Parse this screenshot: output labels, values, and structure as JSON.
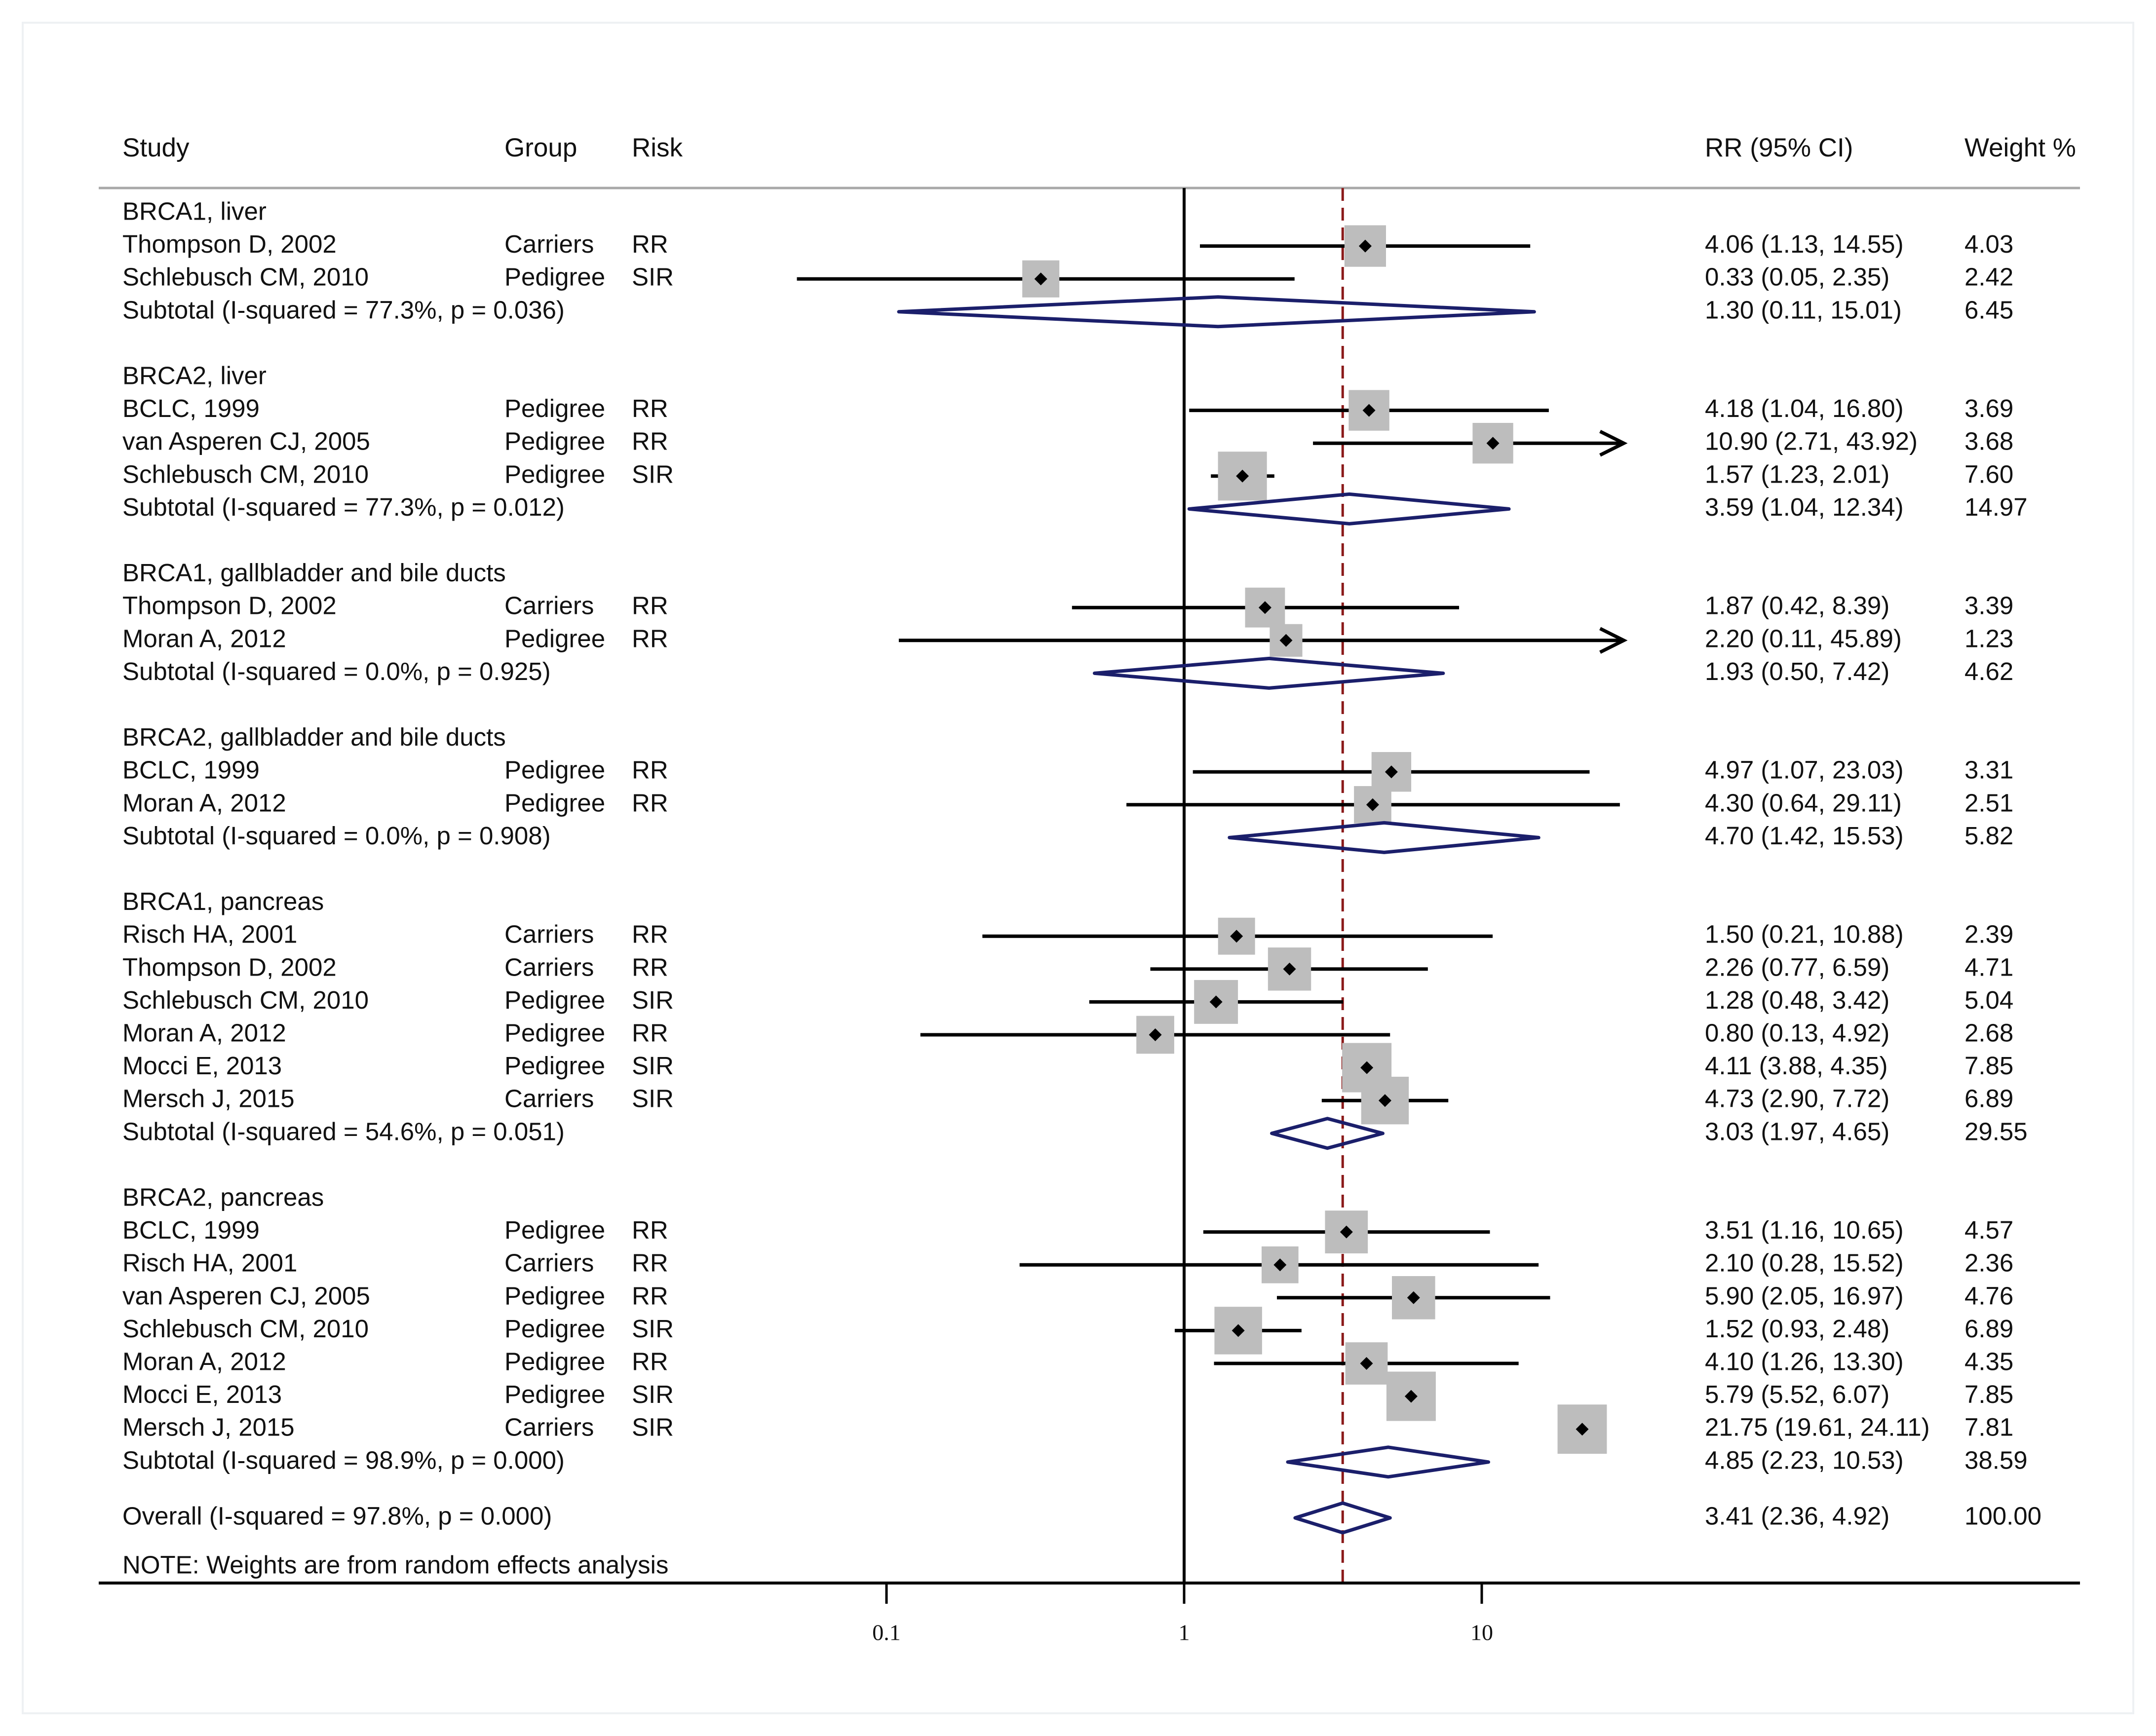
{
  "chart_data": {
    "type": "forest",
    "title": "",
    "headers": {
      "study": "Study",
      "group": "Group",
      "risk": "Risk",
      "effect": "RR (95% CI)",
      "weight": "Weight %"
    },
    "x_scale": "log",
    "xlim": [
      0.03,
      30
    ],
    "x_ticks": [
      {
        "value": 0.1,
        "label": "0.1"
      },
      {
        "value": 1,
        "label": "1"
      },
      {
        "value": 10,
        "label": "10"
      }
    ],
    "null_line": 1,
    "overall_line": 3.41,
    "arrow_max": 30,
    "groups": [
      {
        "title": "BRCA1, liver",
        "studies": [
          {
            "study": "Thompson D, 2002",
            "group": "Carriers",
            "risk": "RR",
            "rr": 4.06,
            "lo": 1.13,
            "hi": 14.55,
            "text": "4.06 (1.13, 14.55)",
            "weight": "4.03",
            "w": 4.03
          },
          {
            "study": "Schlebusch CM, 2010",
            "group": "Pedigree",
            "risk": "SIR",
            "rr": 0.33,
            "lo": 0.05,
            "hi": 2.35,
            "text": "0.33 (0.05, 2.35)",
            "weight": "2.42",
            "w": 2.42
          }
        ],
        "subtotal": {
          "label": "Subtotal  (I-squared = 77.3%, p = 0.036)",
          "rr": 1.3,
          "lo": 0.11,
          "hi": 15.01,
          "text": "1.30 (0.11, 15.01)",
          "weight": "6.45"
        }
      },
      {
        "title": "BRCA2, liver",
        "studies": [
          {
            "study": "BCLC, 1999",
            "group": "Pedigree",
            "risk": "RR",
            "rr": 4.18,
            "lo": 1.04,
            "hi": 16.8,
            "text": "4.18 (1.04, 16.80)",
            "weight": "3.69",
            "w": 3.69
          },
          {
            "study": "van Asperen CJ, 2005",
            "group": "Pedigree",
            "risk": "RR",
            "rr": 10.9,
            "lo": 2.71,
            "hi": 43.92,
            "text": "10.90 (2.71, 43.92)",
            "weight": "3.68",
            "w": 3.68
          },
          {
            "study": "Schlebusch CM, 2010",
            "group": "Pedigree",
            "risk": "SIR",
            "rr": 1.57,
            "lo": 1.23,
            "hi": 2.01,
            "text": "1.57 (1.23, 2.01)",
            "weight": "7.60",
            "w": 7.6
          }
        ],
        "subtotal": {
          "label": "Subtotal  (I-squared = 77.3%, p = 0.012)",
          "rr": 3.59,
          "lo": 1.04,
          "hi": 12.34,
          "text": "3.59 (1.04, 12.34)",
          "weight": "14.97"
        }
      },
      {
        "title": "BRCA1, gallbladder and bile ducts",
        "studies": [
          {
            "study": "Thompson D, 2002",
            "group": "Carriers",
            "risk": "RR",
            "rr": 1.87,
            "lo": 0.42,
            "hi": 8.39,
            "text": "1.87 (0.42, 8.39)",
            "weight": "3.39",
            "w": 3.39
          },
          {
            "study": "Moran A, 2012",
            "group": "Pedigree",
            "risk": "RR",
            "rr": 2.2,
            "lo": 0.11,
            "hi": 45.89,
            "text": "2.20 (0.11, 45.89)",
            "weight": "1.23",
            "w": 1.23
          }
        ],
        "subtotal": {
          "label": "Subtotal  (I-squared = 0.0%, p = 0.925)",
          "rr": 1.93,
          "lo": 0.5,
          "hi": 7.42,
          "text": "1.93 (0.50, 7.42)",
          "weight": "4.62"
        }
      },
      {
        "title": "BRCA2, gallbladder and bile ducts",
        "studies": [
          {
            "study": "BCLC, 1999",
            "group": "Pedigree",
            "risk": "RR",
            "rr": 4.97,
            "lo": 1.07,
            "hi": 23.03,
            "text": "4.97 (1.07, 23.03)",
            "weight": "3.31",
            "w": 3.31
          },
          {
            "study": "Moran A, 2012",
            "group": "Pedigree",
            "risk": "RR",
            "rr": 4.3,
            "lo": 0.64,
            "hi": 29.11,
            "text": "4.30 (0.64, 29.11)",
            "weight": "2.51",
            "w": 2.51
          }
        ],
        "subtotal": {
          "label": "Subtotal  (I-squared = 0.0%, p = 0.908)",
          "rr": 4.7,
          "lo": 1.42,
          "hi": 15.53,
          "text": "4.70 (1.42, 15.53)",
          "weight": "5.82"
        }
      },
      {
        "title": "BRCA1, pancreas",
        "studies": [
          {
            "study": "Risch HA, 2001",
            "group": "Carriers",
            "risk": "RR",
            "rr": 1.5,
            "lo": 0.21,
            "hi": 10.88,
            "text": "1.50 (0.21, 10.88)",
            "weight": "2.39",
            "w": 2.39
          },
          {
            "study": "Thompson D, 2002",
            "group": "Carriers",
            "risk": "RR",
            "rr": 2.26,
            "lo": 0.77,
            "hi": 6.59,
            "text": "2.26 (0.77, 6.59)",
            "weight": "4.71",
            "w": 4.71
          },
          {
            "study": "Schlebusch CM, 2010",
            "group": "Pedigree",
            "risk": "SIR",
            "rr": 1.28,
            "lo": 0.48,
            "hi": 3.42,
            "text": "1.28 (0.48, 3.42)",
            "weight": "5.04",
            "w": 5.04
          },
          {
            "study": "Moran A, 2012",
            "group": "Pedigree",
            "risk": "RR",
            "rr": 0.8,
            "lo": 0.13,
            "hi": 4.92,
            "text": "0.80 (0.13, 4.92)",
            "weight": "2.68",
            "w": 2.68
          },
          {
            "study": "Mocci E, 2013",
            "group": "Pedigree",
            "risk": "SIR",
            "rr": 4.11,
            "lo": 3.88,
            "hi": 4.35,
            "text": "4.11 (3.88, 4.35)",
            "weight": "7.85",
            "w": 7.85
          },
          {
            "study": "Mersch J, 2015",
            "group": "Carriers",
            "risk": "SIR",
            "rr": 4.73,
            "lo": 2.9,
            "hi": 7.72,
            "text": "4.73 (2.90, 7.72)",
            "weight": "6.89",
            "w": 6.89
          }
        ],
        "subtotal": {
          "label": "Subtotal  (I-squared = 54.6%, p = 0.051)",
          "rr": 3.03,
          "lo": 1.97,
          "hi": 4.65,
          "text": "3.03 (1.97, 4.65)",
          "weight": "29.55"
        }
      },
      {
        "title": "BRCA2, pancreas",
        "studies": [
          {
            "study": "BCLC, 1999",
            "group": "Pedigree",
            "risk": "RR",
            "rr": 3.51,
            "lo": 1.16,
            "hi": 10.65,
            "text": "3.51 (1.16, 10.65)",
            "weight": "4.57",
            "w": 4.57
          },
          {
            "study": "Risch HA, 2001",
            "group": "Carriers",
            "risk": "RR",
            "rr": 2.1,
            "lo": 0.28,
            "hi": 15.52,
            "text": "2.10 (0.28, 15.52)",
            "weight": "2.36",
            "w": 2.36
          },
          {
            "study": "van Asperen CJ, 2005",
            "group": "Pedigree",
            "risk": "RR",
            "rr": 5.9,
            "lo": 2.05,
            "hi": 16.97,
            "text": "5.90 (2.05, 16.97)",
            "weight": "4.76",
            "w": 4.76
          },
          {
            "study": "Schlebusch CM, 2010",
            "group": "Pedigree",
            "risk": "SIR",
            "rr": 1.52,
            "lo": 0.93,
            "hi": 2.48,
            "text": "1.52 (0.93, 2.48)",
            "weight": "6.89",
            "w": 6.89
          },
          {
            "study": "Moran A, 2012",
            "group": "Pedigree",
            "risk": "RR",
            "rr": 4.1,
            "lo": 1.26,
            "hi": 13.3,
            "text": "4.10 (1.26, 13.30)",
            "weight": "4.35",
            "w": 4.35
          },
          {
            "study": "Mocci E, 2013",
            "group": "Pedigree",
            "risk": "SIR",
            "rr": 5.79,
            "lo": 5.52,
            "hi": 6.07,
            "text": "5.79 (5.52, 6.07)",
            "weight": "7.85",
            "w": 7.85
          },
          {
            "study": "Mersch J, 2015",
            "group": "Carriers",
            "risk": "SIR",
            "rr": 21.75,
            "lo": 19.61,
            "hi": 24.11,
            "text": "21.75 (19.61, 24.11)",
            "weight": "7.81",
            "w": 7.81
          }
        ],
        "subtotal": {
          "label": "Subtotal  (I-squared = 98.9%, p = 0.000)",
          "rr": 4.85,
          "lo": 2.23,
          "hi": 10.53,
          "text": "4.85 (2.23, 10.53)",
          "weight": "38.59"
        }
      }
    ],
    "overall": {
      "label": "Overall  (I-squared = 97.8%, p = 0.000)",
      "rr": 3.41,
      "lo": 2.36,
      "hi": 4.92,
      "text": "3.41 (2.36, 4.92)",
      "weight": "100.00"
    },
    "note": "NOTE: Weights are from random effects analysis",
    "colors": {
      "ci_line": "#000000",
      "box": "#bdbdbd",
      "diamond": "#1b1f6b",
      "null_line": "#000000",
      "overall_line": "#8b1a1a",
      "rule": "#a8a8a8",
      "axis": "#000000"
    }
  }
}
